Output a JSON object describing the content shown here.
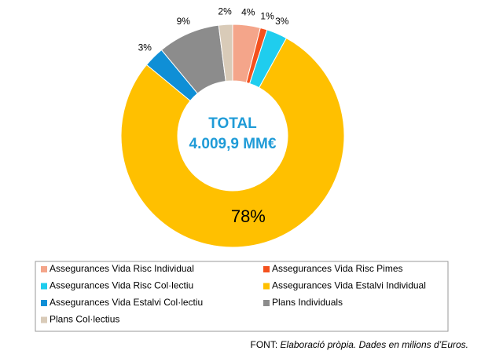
{
  "chart_data": {
    "type": "donut",
    "center_text": [
      "TOTAL",
      "4.009,9 MM€"
    ],
    "categories": [
      "Assegurances Vida Risc Individual",
      "Assegurances Vida Risc Pimes",
      "Assegurances Vida Risc Col·lectiu",
      "Assegurances Vida Estalvi Individual",
      "Assegurances Vida Estalvi Col·lectiu",
      "Plans Individuals",
      "Plans Col·lectius"
    ],
    "values": [
      4,
      1,
      3,
      78,
      3,
      9,
      2
    ],
    "value_labels": [
      "4%",
      "1%",
      "3%",
      "78%",
      "3%",
      "9%",
      "2%"
    ],
    "colors": [
      "#f4a58a",
      "#f4511e",
      "#1fcdee",
      "#ffc000",
      "#0f8fd6",
      "#8c8c8c",
      "#d9cbb8"
    ],
    "legend": "bottom",
    "footer": {
      "prefix": "FONT:",
      "text": "Elaboració pròpia. Dades en milions d’Euros."
    }
  }
}
